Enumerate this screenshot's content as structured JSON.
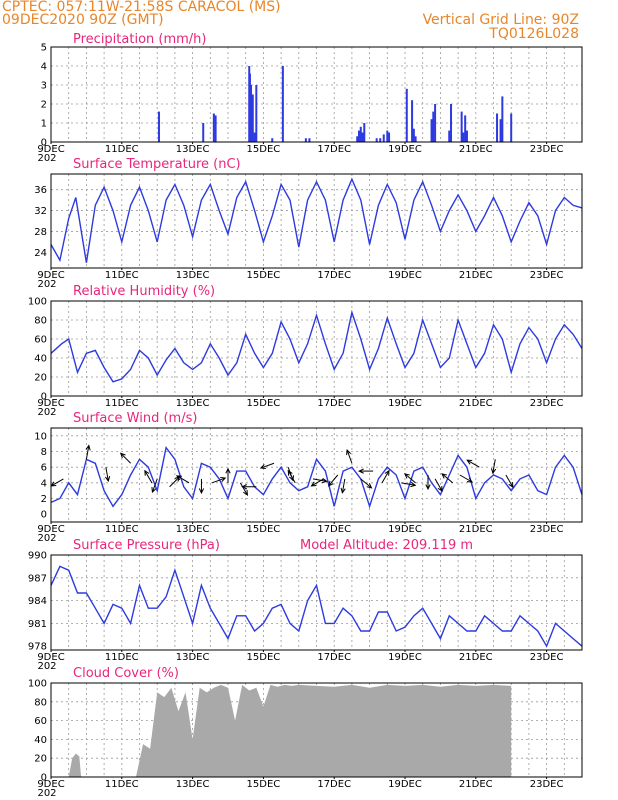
{
  "header": {
    "left_line1": "CPTEC:   057:11W-21:58S  CARACOL (MS)",
    "left_line2": "09DEC2020 90Z (GMT)",
    "right_line1": "Vertical Grid Line: 90Z",
    "right_line2": "TQ0126L028"
  },
  "date_labels": [
    "9DEC",
    "11DEC",
    "13DEC",
    "15DEC",
    "17DEC",
    "19DEC",
    "21DEC",
    "23DEC"
  ],
  "x_stub": "202",
  "colors": {
    "series": "#2d3adf",
    "title": "#e8267c",
    "header": "#e8862a",
    "cloud": "#a9a9a9"
  },
  "chart_data": [
    {
      "id": "precip",
      "type": "bar",
      "title": "Precipitation (mm/h)",
      "x_range": [
        "2020-12-09",
        "2020-12-24"
      ],
      "ylim": [
        0,
        5
      ],
      "yticks": [
        0,
        1,
        2,
        3,
        4,
        5
      ],
      "x_days": [
        3.05,
        4.3,
        4.6,
        4.65,
        5.6,
        5.62,
        5.65,
        5.7,
        5.75,
        5.8,
        6.25,
        6.55,
        7.2,
        7.3,
        8.65,
        8.7,
        8.75,
        8.8,
        8.85,
        9.2,
        9.3,
        9.4,
        9.5,
        9.55,
        10.05,
        10.2,
        10.25,
        10.3,
        10.75,
        10.8,
        10.85,
        11.25,
        11.3,
        11.6,
        11.65,
        11.7,
        11.75,
        12.6,
        12.7,
        12.75,
        13.0
      ],
      "values": [
        1.6,
        1.0,
        1.5,
        1.4,
        4.0,
        3.6,
        3.0,
        2.5,
        0.5,
        3.0,
        0.2,
        4.0,
        0.2,
        0.2,
        0.3,
        0.6,
        0.8,
        0.5,
        1.0,
        0.2,
        0.2,
        0.4,
        0.6,
        0.5,
        2.8,
        2.2,
        0.7,
        0.3,
        1.2,
        1.6,
        2.0,
        0.6,
        2.0,
        1.6,
        0.5,
        1.4,
        0.6,
        1.5,
        1.2,
        2.4,
        1.5
      ]
    },
    {
      "id": "temp",
      "type": "line",
      "title": "Surface Temperature (nC)",
      "x_range": [
        "2020-12-09",
        "2020-12-24"
      ],
      "ylim": [
        21,
        39
      ],
      "yticks": [
        24,
        28,
        32,
        36
      ],
      "x_days": [
        0,
        0.25,
        0.5,
        0.7,
        1.0,
        1.25,
        1.5,
        1.75,
        2.0,
        2.25,
        2.5,
        2.75,
        3.0,
        3.25,
        3.5,
        3.75,
        4.0,
        4.25,
        4.5,
        4.75,
        5.0,
        5.25,
        5.5,
        5.75,
        6.0,
        6.25,
        6.5,
        6.75,
        7.0,
        7.25,
        7.5,
        7.75,
        8.0,
        8.25,
        8.5,
        8.75,
        9.0,
        9.25,
        9.5,
        9.75,
        10.0,
        10.25,
        10.5,
        10.75,
        11.0,
        11.25,
        11.5,
        11.75,
        12.0,
        12.25,
        12.5,
        12.75,
        13.0,
        13.25,
        13.5,
        13.75,
        14.0,
        14.25,
        14.5,
        14.75,
        15.0
      ],
      "values": [
        25.5,
        22.5,
        30.5,
        34.5,
        22,
        33,
        36.5,
        32,
        26,
        33,
        36.5,
        32,
        26,
        34,
        37,
        33,
        27,
        34,
        37,
        32,
        27.5,
        34.5,
        37.5,
        32,
        26,
        31,
        37,
        34,
        25,
        34,
        37.5,
        34,
        26,
        34,
        38,
        34,
        25.5,
        33,
        37,
        33.5,
        26.5,
        34,
        37.5,
        33,
        28,
        32,
        35,
        32,
        28,
        31,
        34.5,
        31,
        26,
        30,
        33.5,
        31,
        25.5,
        32,
        34.5,
        33,
        32.5
      ]
    },
    {
      "id": "rh",
      "type": "line",
      "title": "Relative Humidity (%)",
      "x_range": [
        "2020-12-09",
        "2020-12-24"
      ],
      "ylim": [
        0,
        100
      ],
      "yticks": [
        0,
        20,
        40,
        60,
        80,
        100
      ],
      "x_days": [
        0,
        0.3,
        0.5,
        0.75,
        1.0,
        1.25,
        1.5,
        1.75,
        2.0,
        2.25,
        2.5,
        2.75,
        3.0,
        3.25,
        3.5,
        3.75,
        4.0,
        4.25,
        4.5,
        4.75,
        5.0,
        5.25,
        5.5,
        5.75,
        6.0,
        6.25,
        6.5,
        6.75,
        7.0,
        7.25,
        7.5,
        7.75,
        8.0,
        8.25,
        8.5,
        8.75,
        9.0,
        9.25,
        9.5,
        9.75,
        10.0,
        10.25,
        10.5,
        10.75,
        11.0,
        11.25,
        11.5,
        11.75,
        12.0,
        12.25,
        12.5,
        12.75,
        13.0,
        13.25,
        13.5,
        13.75,
        14.0,
        14.25,
        14.5,
        14.75,
        15.0
      ],
      "values": [
        45,
        55,
        60,
        25,
        45,
        48,
        30,
        15,
        18,
        28,
        48,
        40,
        22,
        38,
        50,
        35,
        28,
        35,
        55,
        40,
        22,
        35,
        65,
        45,
        30,
        45,
        78,
        60,
        35,
        55,
        85,
        55,
        28,
        45,
        88,
        60,
        28,
        50,
        82,
        55,
        30,
        45,
        80,
        55,
        30,
        40,
        80,
        55,
        30,
        45,
        75,
        60,
        25,
        55,
        72,
        60,
        35,
        60,
        75,
        65,
        50
      ]
    },
    {
      "id": "wind",
      "type": "line",
      "title": "Surface Wind (m/s)",
      "x_range": [
        "2020-12-09",
        "2020-12-24"
      ],
      "ylim": [
        -1,
        11
      ],
      "yticks": [
        0,
        2,
        4,
        6,
        8,
        10
      ],
      "x_days": [
        0,
        0.25,
        0.5,
        0.75,
        1.0,
        1.25,
        1.5,
        1.75,
        2.0,
        2.25,
        2.5,
        2.75,
        3.0,
        3.25,
        3.5,
        3.75,
        4.0,
        4.25,
        4.5,
        4.75,
        5.0,
        5.25,
        5.5,
        5.75,
        6.0,
        6.25,
        6.5,
        6.75,
        7.0,
        7.25,
        7.5,
        7.75,
        8.0,
        8.25,
        8.5,
        8.75,
        9.0,
        9.25,
        9.5,
        9.75,
        10.0,
        10.25,
        10.5,
        10.75,
        11.0,
        11.25,
        11.5,
        11.75,
        12.0,
        12.25,
        12.5,
        12.75,
        13.0,
        13.25,
        13.5,
        13.75,
        14.0,
        14.25,
        14.5,
        14.75,
        15.0
      ],
      "values": [
        1.5,
        2.0,
        4.0,
        2.5,
        7.0,
        6.5,
        3.0,
        1.0,
        2.5,
        5.0,
        7.0,
        6.0,
        3.0,
        8.5,
        7.0,
        3.5,
        2.0,
        6.5,
        6.0,
        4.5,
        2.0,
        5.5,
        5.5,
        3.5,
        2.5,
        4.5,
        6.0,
        4.0,
        3.0,
        3.5,
        7.0,
        5.5,
        1.0,
        5.5,
        6.0,
        4.5,
        1.0,
        4.5,
        6.0,
        5.0,
        2.0,
        5.5,
        6.0,
        4.0,
        2.5,
        5.0,
        7.5,
        6.0,
        2.0,
        4.0,
        5.0,
        4.5,
        3.0,
        4.5,
        5.0,
        3.0,
        2.5,
        6.0,
        7.5,
        6.0,
        2.5
      ],
      "arrows_x_days": [
        0.35,
        1.0,
        1.55,
        2.25,
        2.85,
        3.0,
        3.35,
        3.9,
        4.25,
        4.55,
        5.0,
        5.35,
        5.8,
        6.3,
        6.7,
        6.9,
        7.4,
        7.7,
        8.1,
        8.3,
        8.5,
        8.75,
        9.1,
        9.35,
        9.9,
        10.3,
        10.65,
        10.85,
        11.35,
        11.55,
        12.1,
        12.55,
        12.85
      ],
      "arrows_v": [
        4.5,
        7.0,
        6.0,
        6.5,
        4.0,
        4.5,
        3.5,
        4.0,
        4.5,
        4.0,
        4.0,
        4.0,
        3.5,
        6.5,
        6.0,
        4.0,
        4.5,
        4.5,
        5.0,
        4.5,
        6.5,
        4.5,
        5.5,
        4.0,
        4.0,
        4.0,
        5.0,
        4.5,
        4.0,
        5.0,
        6.0,
        7.0,
        5.0
      ],
      "arrows_deg": [
        210,
        80,
        280,
        135,
        120,
        250,
        45,
        150,
        270,
        20,
        90,
        300,
        180,
        200,
        290,
        120,
        350,
        210,
        230,
        260,
        110,
        320,
        180,
        60,
        350,
        140,
        270,
        300,
        140,
        330,
        150,
        260,
        300
      ]
    },
    {
      "id": "pres",
      "type": "line",
      "title": "Surface Pressure (hPa)",
      "annotation": "Model Altitude: 209.119  m",
      "x_range": [
        "2020-12-09",
        "2020-12-24"
      ],
      "ylim": [
        977.5,
        990
      ],
      "yticks": [
        978,
        981,
        984,
        987,
        990
      ],
      "x_days": [
        0,
        0.25,
        0.5,
        0.75,
        1.0,
        1.25,
        1.5,
        1.75,
        2.0,
        2.25,
        2.5,
        2.75,
        3.0,
        3.25,
        3.5,
        3.75,
        4.0,
        4.25,
        4.5,
        4.75,
        5.0,
        5.25,
        5.5,
        5.75,
        6.0,
        6.25,
        6.5,
        6.75,
        7.0,
        7.25,
        7.5,
        7.75,
        8.0,
        8.25,
        8.5,
        8.75,
        9.0,
        9.25,
        9.5,
        9.75,
        10.0,
        10.25,
        10.5,
        10.75,
        11.0,
        11.25,
        11.5,
        11.75,
        12.0,
        12.25,
        12.5,
        12.75,
        13.0,
        13.25,
        13.5,
        13.75,
        14.0,
        14.25,
        14.5,
        14.75,
        15.0
      ],
      "values": [
        986,
        988.5,
        988,
        985,
        985,
        983,
        981,
        983.5,
        983,
        981,
        986,
        983,
        983,
        984.5,
        988,
        984.5,
        981,
        986,
        983,
        981,
        979,
        982,
        982,
        980,
        981,
        983,
        983.5,
        981,
        980,
        984,
        986,
        981,
        981,
        983,
        982,
        980,
        980,
        982.5,
        982.5,
        980,
        980.5,
        982,
        983,
        981,
        979,
        982,
        981,
        980,
        980,
        982,
        981,
        980,
        980,
        982,
        981,
        980,
        978,
        981,
        980,
        979,
        978
      ]
    },
    {
      "id": "cloud",
      "type": "area",
      "title": "Cloud Cover (%)",
      "x_range": [
        "2020-12-09",
        "2020-12-24"
      ],
      "ylim": [
        0,
        100
      ],
      "yticks": [
        0,
        20,
        40,
        60,
        80,
        100
      ],
      "x_days": [
        0,
        0.5,
        0.6,
        0.7,
        0.8,
        0.85,
        1.0,
        1.5,
        2.0,
        2.4,
        2.6,
        2.8,
        3.0,
        3.2,
        3.4,
        3.6,
        3.8,
        4.0,
        4.2,
        4.4,
        4.6,
        4.8,
        5.0,
        5.2,
        5.4,
        5.6,
        5.8,
        6.0,
        6.2,
        6.4,
        6.6,
        6.8,
        7.0,
        7.5,
        8.0,
        8.5,
        9.0,
        9.5,
        10.0,
        10.5,
        11.0,
        11.5,
        12.0,
        12.5,
        13.0
      ],
      "values": [
        0,
        0,
        20,
        25,
        22,
        0,
        0,
        0,
        0,
        0,
        35,
        30,
        90,
        85,
        95,
        70,
        90,
        40,
        95,
        90,
        95,
        98,
        95,
        60,
        98,
        92,
        95,
        75,
        98,
        96,
        98,
        97,
        98,
        97,
        96,
        98,
        95,
        98,
        97,
        98,
        96,
        98,
        97,
        98,
        97
      ]
    }
  ]
}
